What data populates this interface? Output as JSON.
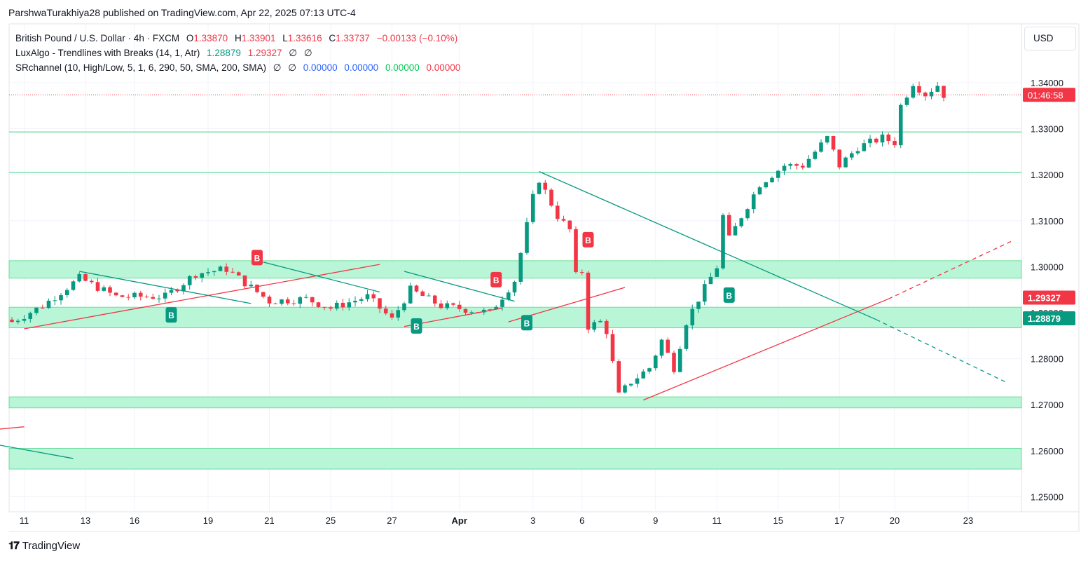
{
  "publisher": "ParshwaTurakhiya28 published on TradingView.com, Apr 22, 2025 07:13 UTC-4",
  "currency": "USD",
  "brand": "TradingView",
  "legend": {
    "symbol": "British Pound / U.S. Dollar · 4h · FXCM",
    "o_label": "O",
    "o": "1.33870",
    "h_label": "H",
    "h": "1.33901",
    "l_label": "L",
    "l": "1.33616",
    "c_label": "C",
    "c": "1.33737",
    "change": "−0.00133 (−0.10%)",
    "indicator1": "LuxAlgo - Trendlines with Breaks (14, 1, Atr)",
    "ind1_v1": "1.28879",
    "ind1_v2": "1.29327",
    "ind1_v3": "∅",
    "ind1_v4": "∅",
    "indicator2": "SRchannel (10, High/Low, 5, 1, 6, 290, 50, SMA, 200, SMA)",
    "ind2_v1": "∅",
    "ind2_v2": "∅",
    "ind2_v3": "0.00000",
    "ind2_v4": "0.00000",
    "ind2_v5": "0.00000",
    "ind2_v6": "0.00000"
  },
  "colors": {
    "up": "#089981",
    "down": "#f23645",
    "zone_fill": "#b9f6d8",
    "zone_line": "#52d68a",
    "grid": "#f0f3fa",
    "axis_text": "#131722"
  },
  "chart_data": {
    "type": "candlestick",
    "symbol": "GBPUSD",
    "timeframe": "4h",
    "ylim": [
      1.245,
      1.35
    ],
    "y_ticks": [
      "1.34000",
      "1.33000",
      "1.32000",
      "1.31000",
      "1.30000",
      "1.29000",
      "1.28000",
      "1.27000",
      "1.26000",
      "1.25000"
    ],
    "x_ticks": [
      "11",
      "13",
      "16",
      "19",
      "21",
      "25",
      "27",
      "Apr",
      "3",
      "6",
      "9",
      "11",
      "15",
      "17",
      "20",
      "23"
    ],
    "x_tick_positions": [
      2,
      12,
      20,
      32,
      42,
      52,
      62,
      73,
      85,
      93,
      105,
      115,
      125,
      135,
      144,
      156
    ],
    "bar_count": 156,
    "last_price": 1.33737,
    "countdown": "01:46:58",
    "indicator_labels": [
      {
        "text": "1.29327",
        "value": 1.29327,
        "color": "#f23645"
      },
      {
        "text": "1.28879",
        "value": 1.28879,
        "color": "#089981"
      }
    ],
    "close_path": [
      {
        "bar": 0,
        "close": 1.288
      },
      {
        "bar": 5,
        "close": 1.2915
      },
      {
        "bar": 11,
        "close": 1.2975
      },
      {
        "bar": 17,
        "close": 1.2935
      },
      {
        "bar": 25,
        "close": 1.2935
      },
      {
        "bar": 30,
        "close": 1.2985
      },
      {
        "bar": 35,
        "close": 1.2995
      },
      {
        "bar": 42,
        "close": 1.2925
      },
      {
        "bar": 48,
        "close": 1.293
      },
      {
        "bar": 52,
        "close": 1.291
      },
      {
        "bar": 58,
        "close": 1.2935
      },
      {
        "bar": 62,
        "close": 1.2885
      },
      {
        "bar": 65,
        "close": 1.295
      },
      {
        "bar": 70,
        "close": 1.2915
      },
      {
        "bar": 78,
        "close": 1.29
      },
      {
        "bar": 82,
        "close": 1.297
      },
      {
        "bar": 85,
        "close": 1.315
      },
      {
        "bar": 86,
        "close": 1.319
      },
      {
        "bar": 89,
        "close": 1.311
      },
      {
        "bar": 91,
        "close": 1.308
      },
      {
        "bar": 92,
        "close": 1.298
      },
      {
        "bar": 93,
        "close": 1.299
      },
      {
        "bar": 94,
        "close": 1.287
      },
      {
        "bar": 96,
        "close": 1.288
      },
      {
        "bar": 97,
        "close": 1.286
      },
      {
        "bar": 99,
        "close": 1.272
      },
      {
        "bar": 101,
        "close": 1.275
      },
      {
        "bar": 104,
        "close": 1.278
      },
      {
        "bar": 106,
        "close": 1.284
      },
      {
        "bar": 108,
        "close": 1.278
      },
      {
        "bar": 110,
        "close": 1.288
      },
      {
        "bar": 112,
        "close": 1.293
      },
      {
        "bar": 115,
        "close": 1.3
      },
      {
        "bar": 116,
        "close": 1.311
      },
      {
        "bar": 117,
        "close": 1.306
      },
      {
        "bar": 119,
        "close": 1.311
      },
      {
        "bar": 122,
        "close": 1.318
      },
      {
        "bar": 126,
        "close": 1.322
      },
      {
        "bar": 129,
        "close": 1.322
      },
      {
        "bar": 133,
        "close": 1.328
      },
      {
        "bar": 135,
        "close": 1.322
      },
      {
        "bar": 138,
        "close": 1.326
      },
      {
        "bar": 142,
        "close": 1.328
      },
      {
        "bar": 144,
        "close": 1.327
      },
      {
        "bar": 145,
        "close": 1.335
      },
      {
        "bar": 147,
        "close": 1.34
      },
      {
        "bar": 149,
        "close": 1.3375
      },
      {
        "bar": 151,
        "close": 1.3395
      },
      {
        "bar": 152,
        "close": 1.33737
      }
    ],
    "sr_zones": [
      {
        "low": 1.2975,
        "high": 1.3013
      },
      {
        "low": 1.2867,
        "high": 1.2912
      },
      {
        "low": 1.2693,
        "high": 1.2717
      },
      {
        "low": 1.256,
        "high": 1.2605
      }
    ],
    "sr_lines": [
      1.3293,
      1.3205
    ],
    "trendlines": [
      {
        "color": "#089981",
        "from": [
          11,
          1.299
        ],
        "to": [
          39,
          1.292
        ]
      },
      {
        "color": "#f23645",
        "from": [
          2,
          1.2865
        ],
        "to": [
          60,
          1.3005
        ]
      },
      {
        "color": "#089981",
        "from": [
          41,
          1.301
        ],
        "to": [
          60,
          1.2945
        ]
      },
      {
        "color": "#089981",
        "from": [
          64,
          1.299
        ],
        "to": [
          82,
          1.2925
        ]
      },
      {
        "color": "#f23645",
        "from": [
          64,
          1.287
        ],
        "to": [
          80,
          1.291
        ]
      },
      {
        "color": "#f23645",
        "from": [
          81,
          1.288
        ],
        "to": [
          100,
          1.2955
        ]
      },
      {
        "color": "#089981",
        "from": [
          86,
          1.3207
        ],
        "to": [
          141,
          1.2885
        ]
      },
      {
        "color": "#089981",
        "from": [
          141,
          1.2885
        ],
        "to": [
          162,
          1.275
        ],
        "dashed": true
      },
      {
        "color": "#f23645",
        "from": [
          103,
          1.271
        ],
        "to": [
          143,
          1.293
        ]
      },
      {
        "color": "#f23645",
        "from": [
          143,
          1.293
        ],
        "to": [
          163,
          1.3055
        ],
        "dashed": true
      },
      {
        "color": "#f23645",
        "from": [
          -2,
          1.2647
        ],
        "to": [
          2,
          1.2652
        ]
      },
      {
        "color": "#089981",
        "from": [
          -2,
          1.2612
        ],
        "to": [
          10,
          1.2583
        ]
      }
    ],
    "break_markers": [
      {
        "bar": 26,
        "value": 1.2912,
        "text": "B",
        "type": "bull"
      },
      {
        "bar": 40,
        "value": 1.3003,
        "text": "B",
        "type": "bear"
      },
      {
        "bar": 66,
        "value": 1.2888,
        "text": "B",
        "type": "bull"
      },
      {
        "bar": 79,
        "value": 1.2955,
        "text": "B",
        "type": "bear"
      },
      {
        "bar": 84,
        "value": 1.2895,
        "text": "B",
        "type": "bull"
      },
      {
        "bar": 94,
        "value": 1.3042,
        "text": "B",
        "type": "bear"
      },
      {
        "bar": 117,
        "value": 1.2955,
        "text": "B",
        "type": "bull"
      }
    ]
  }
}
